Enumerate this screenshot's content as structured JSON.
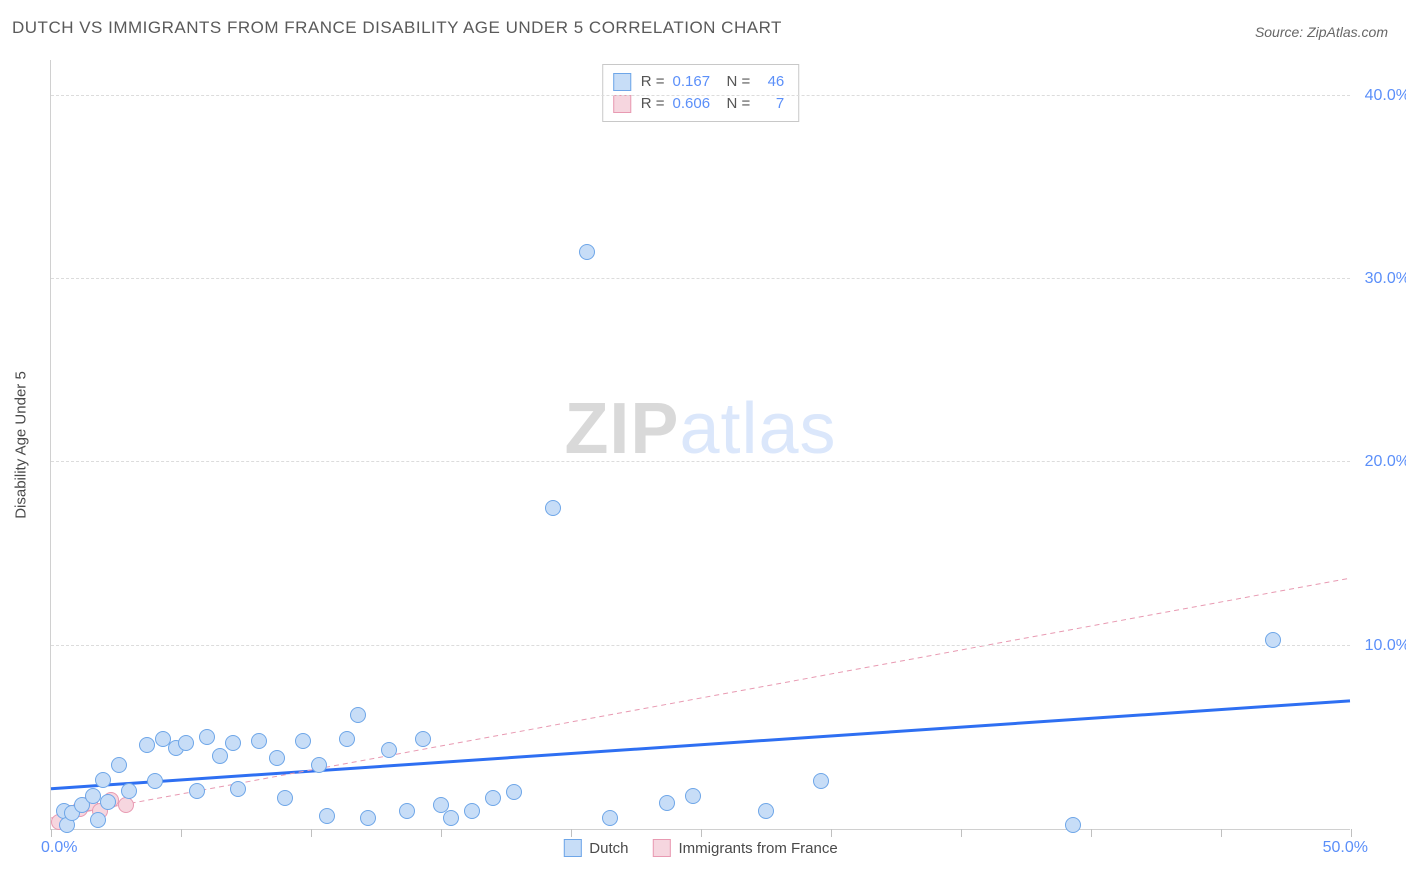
{
  "title": "DUTCH VS IMMIGRANTS FROM FRANCE DISABILITY AGE UNDER 5 CORRELATION CHART",
  "source": "Source: ZipAtlas.com",
  "watermark": {
    "part1": "ZIP",
    "part2": "atlas"
  },
  "chart": {
    "type": "scatter",
    "y_axis_title": "Disability Age Under 5",
    "xlim": [
      0.0,
      50.0
    ],
    "ylim": [
      0.0,
      42.0
    ],
    "y_ticks": [
      10.0,
      20.0,
      30.0,
      40.0
    ],
    "y_tick_labels": [
      "10.0%",
      "20.0%",
      "30.0%",
      "40.0%"
    ],
    "x_ticks": [
      0,
      5,
      10,
      15,
      20,
      25,
      30,
      35,
      40,
      45,
      50
    ],
    "x_label_min": "0.0%",
    "x_label_max": "50.0%",
    "grid_color": "#dcdcdc",
    "axis_color": "#d0d0d0",
    "background_color": "#ffffff",
    "title_color": "#5a5a5a",
    "title_fontsize": 17,
    "right_label_color": "#5b8ff9",
    "series": [
      {
        "name": "Dutch",
        "marker_fill": "#c7ddf7",
        "marker_stroke": "#6ea6e8",
        "marker_radius": 8,
        "trend": {
          "color": "#2e6ff2",
          "width": 3,
          "dash": "none",
          "x1": 0,
          "y1": 2.2,
          "x2": 50,
          "y2": 7.0
        },
        "r_value": "0.167",
        "n_value": "46",
        "points": [
          [
            0.5,
            1.0
          ],
          [
            0.6,
            0.2
          ],
          [
            0.8,
            0.9
          ],
          [
            1.2,
            1.3
          ],
          [
            1.6,
            1.8
          ],
          [
            1.8,
            0.5
          ],
          [
            2.0,
            2.7
          ],
          [
            2.2,
            1.5
          ],
          [
            2.6,
            3.5
          ],
          [
            3.0,
            2.1
          ],
          [
            3.7,
            4.6
          ],
          [
            4.0,
            2.6
          ],
          [
            4.3,
            4.9
          ],
          [
            4.8,
            4.4
          ],
          [
            5.2,
            4.7
          ],
          [
            5.6,
            2.1
          ],
          [
            6.0,
            5.0
          ],
          [
            6.5,
            4.0
          ],
          [
            7.0,
            4.7
          ],
          [
            7.2,
            2.2
          ],
          [
            8.0,
            4.8
          ],
          [
            8.7,
            3.9
          ],
          [
            9.0,
            1.7
          ],
          [
            9.7,
            4.8
          ],
          [
            10.3,
            3.5
          ],
          [
            10.6,
            0.7
          ],
          [
            11.4,
            4.9
          ],
          [
            11.8,
            6.2
          ],
          [
            12.2,
            0.6
          ],
          [
            13.0,
            4.3
          ],
          [
            13.7,
            1.0
          ],
          [
            14.3,
            4.9
          ],
          [
            15.0,
            1.3
          ],
          [
            15.4,
            0.6
          ],
          [
            16.2,
            1.0
          ],
          [
            17.0,
            1.7
          ],
          [
            17.8,
            2.0
          ],
          [
            19.3,
            17.5
          ],
          [
            20.6,
            31.5
          ],
          [
            21.5,
            0.6
          ],
          [
            23.7,
            1.4
          ],
          [
            24.7,
            1.8
          ],
          [
            27.5,
            1.0
          ],
          [
            29.6,
            2.6
          ],
          [
            39.3,
            0.2
          ],
          [
            47.0,
            10.3
          ]
        ]
      },
      {
        "name": "Immigrants from France",
        "marker_fill": "#f6d6df",
        "marker_stroke": "#e89ab2",
        "marker_radius": 8,
        "trend": {
          "color": "#e89ab2",
          "width": 1,
          "dash": "5 4",
          "x1": 0,
          "y1": 0.6,
          "x2": 50,
          "y2": 13.7
        },
        "r_value": "0.606",
        "n_value": "7",
        "points": [
          [
            0.3,
            0.4
          ],
          [
            0.7,
            0.9
          ],
          [
            1.1,
            1.1
          ],
          [
            1.5,
            1.4
          ],
          [
            1.9,
            1.0
          ],
          [
            2.3,
            1.6
          ],
          [
            2.9,
            1.3
          ]
        ]
      }
    ],
    "bottom_legend": [
      {
        "label": "Dutch",
        "fill": "#c7ddf7",
        "stroke": "#6ea6e8"
      },
      {
        "label": "Immigrants from France",
        "fill": "#f6d6df",
        "stroke": "#e89ab2"
      }
    ]
  }
}
